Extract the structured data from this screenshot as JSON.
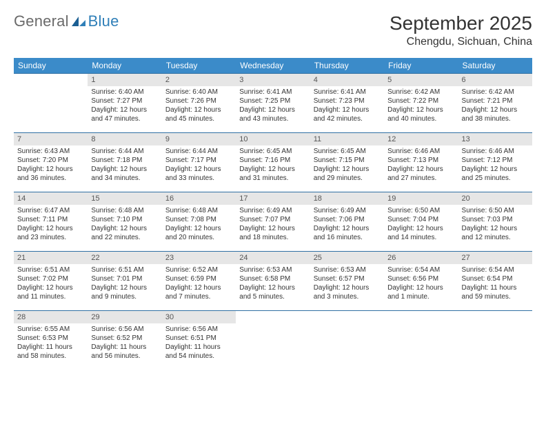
{
  "brand": {
    "part1": "General",
    "part2": "Blue",
    "part2_color": "#2f7fb8",
    "accent": "#1b5f93"
  },
  "title": "September 2025",
  "location": "Chengdu, Sichuan, China",
  "header_bg": "#3b8bc9",
  "daynum_bg": "#e6e6e6",
  "rule_color": "#2f6fa3",
  "day_names": [
    "Sunday",
    "Monday",
    "Tuesday",
    "Wednesday",
    "Thursday",
    "Friday",
    "Saturday"
  ],
  "weeks": [
    [
      null,
      {
        "n": "1",
        "sr": "Sunrise: 6:40 AM",
        "ss": "Sunset: 7:27 PM",
        "dl": "Daylight: 12 hours and 47 minutes."
      },
      {
        "n": "2",
        "sr": "Sunrise: 6:40 AM",
        "ss": "Sunset: 7:26 PM",
        "dl": "Daylight: 12 hours and 45 minutes."
      },
      {
        "n": "3",
        "sr": "Sunrise: 6:41 AM",
        "ss": "Sunset: 7:25 PM",
        "dl": "Daylight: 12 hours and 43 minutes."
      },
      {
        "n": "4",
        "sr": "Sunrise: 6:41 AM",
        "ss": "Sunset: 7:23 PM",
        "dl": "Daylight: 12 hours and 42 minutes."
      },
      {
        "n": "5",
        "sr": "Sunrise: 6:42 AM",
        "ss": "Sunset: 7:22 PM",
        "dl": "Daylight: 12 hours and 40 minutes."
      },
      {
        "n": "6",
        "sr": "Sunrise: 6:42 AM",
        "ss": "Sunset: 7:21 PM",
        "dl": "Daylight: 12 hours and 38 minutes."
      }
    ],
    [
      {
        "n": "7",
        "sr": "Sunrise: 6:43 AM",
        "ss": "Sunset: 7:20 PM",
        "dl": "Daylight: 12 hours and 36 minutes."
      },
      {
        "n": "8",
        "sr": "Sunrise: 6:44 AM",
        "ss": "Sunset: 7:18 PM",
        "dl": "Daylight: 12 hours and 34 minutes."
      },
      {
        "n": "9",
        "sr": "Sunrise: 6:44 AM",
        "ss": "Sunset: 7:17 PM",
        "dl": "Daylight: 12 hours and 33 minutes."
      },
      {
        "n": "10",
        "sr": "Sunrise: 6:45 AM",
        "ss": "Sunset: 7:16 PM",
        "dl": "Daylight: 12 hours and 31 minutes."
      },
      {
        "n": "11",
        "sr": "Sunrise: 6:45 AM",
        "ss": "Sunset: 7:15 PM",
        "dl": "Daylight: 12 hours and 29 minutes."
      },
      {
        "n": "12",
        "sr": "Sunrise: 6:46 AM",
        "ss": "Sunset: 7:13 PM",
        "dl": "Daylight: 12 hours and 27 minutes."
      },
      {
        "n": "13",
        "sr": "Sunrise: 6:46 AM",
        "ss": "Sunset: 7:12 PM",
        "dl": "Daylight: 12 hours and 25 minutes."
      }
    ],
    [
      {
        "n": "14",
        "sr": "Sunrise: 6:47 AM",
        "ss": "Sunset: 7:11 PM",
        "dl": "Daylight: 12 hours and 23 minutes."
      },
      {
        "n": "15",
        "sr": "Sunrise: 6:48 AM",
        "ss": "Sunset: 7:10 PM",
        "dl": "Daylight: 12 hours and 22 minutes."
      },
      {
        "n": "16",
        "sr": "Sunrise: 6:48 AM",
        "ss": "Sunset: 7:08 PM",
        "dl": "Daylight: 12 hours and 20 minutes."
      },
      {
        "n": "17",
        "sr": "Sunrise: 6:49 AM",
        "ss": "Sunset: 7:07 PM",
        "dl": "Daylight: 12 hours and 18 minutes."
      },
      {
        "n": "18",
        "sr": "Sunrise: 6:49 AM",
        "ss": "Sunset: 7:06 PM",
        "dl": "Daylight: 12 hours and 16 minutes."
      },
      {
        "n": "19",
        "sr": "Sunrise: 6:50 AM",
        "ss": "Sunset: 7:04 PM",
        "dl": "Daylight: 12 hours and 14 minutes."
      },
      {
        "n": "20",
        "sr": "Sunrise: 6:50 AM",
        "ss": "Sunset: 7:03 PM",
        "dl": "Daylight: 12 hours and 12 minutes."
      }
    ],
    [
      {
        "n": "21",
        "sr": "Sunrise: 6:51 AM",
        "ss": "Sunset: 7:02 PM",
        "dl": "Daylight: 12 hours and 11 minutes."
      },
      {
        "n": "22",
        "sr": "Sunrise: 6:51 AM",
        "ss": "Sunset: 7:01 PM",
        "dl": "Daylight: 12 hours and 9 minutes."
      },
      {
        "n": "23",
        "sr": "Sunrise: 6:52 AM",
        "ss": "Sunset: 6:59 PM",
        "dl": "Daylight: 12 hours and 7 minutes."
      },
      {
        "n": "24",
        "sr": "Sunrise: 6:53 AM",
        "ss": "Sunset: 6:58 PM",
        "dl": "Daylight: 12 hours and 5 minutes."
      },
      {
        "n": "25",
        "sr": "Sunrise: 6:53 AM",
        "ss": "Sunset: 6:57 PM",
        "dl": "Daylight: 12 hours and 3 minutes."
      },
      {
        "n": "26",
        "sr": "Sunrise: 6:54 AM",
        "ss": "Sunset: 6:56 PM",
        "dl": "Daylight: 12 hours and 1 minute."
      },
      {
        "n": "27",
        "sr": "Sunrise: 6:54 AM",
        "ss": "Sunset: 6:54 PM",
        "dl": "Daylight: 11 hours and 59 minutes."
      }
    ],
    [
      {
        "n": "28",
        "sr": "Sunrise: 6:55 AM",
        "ss": "Sunset: 6:53 PM",
        "dl": "Daylight: 11 hours and 58 minutes."
      },
      {
        "n": "29",
        "sr": "Sunrise: 6:56 AM",
        "ss": "Sunset: 6:52 PM",
        "dl": "Daylight: 11 hours and 56 minutes."
      },
      {
        "n": "30",
        "sr": "Sunrise: 6:56 AM",
        "ss": "Sunset: 6:51 PM",
        "dl": "Daylight: 11 hours and 54 minutes."
      },
      null,
      null,
      null,
      null
    ]
  ]
}
